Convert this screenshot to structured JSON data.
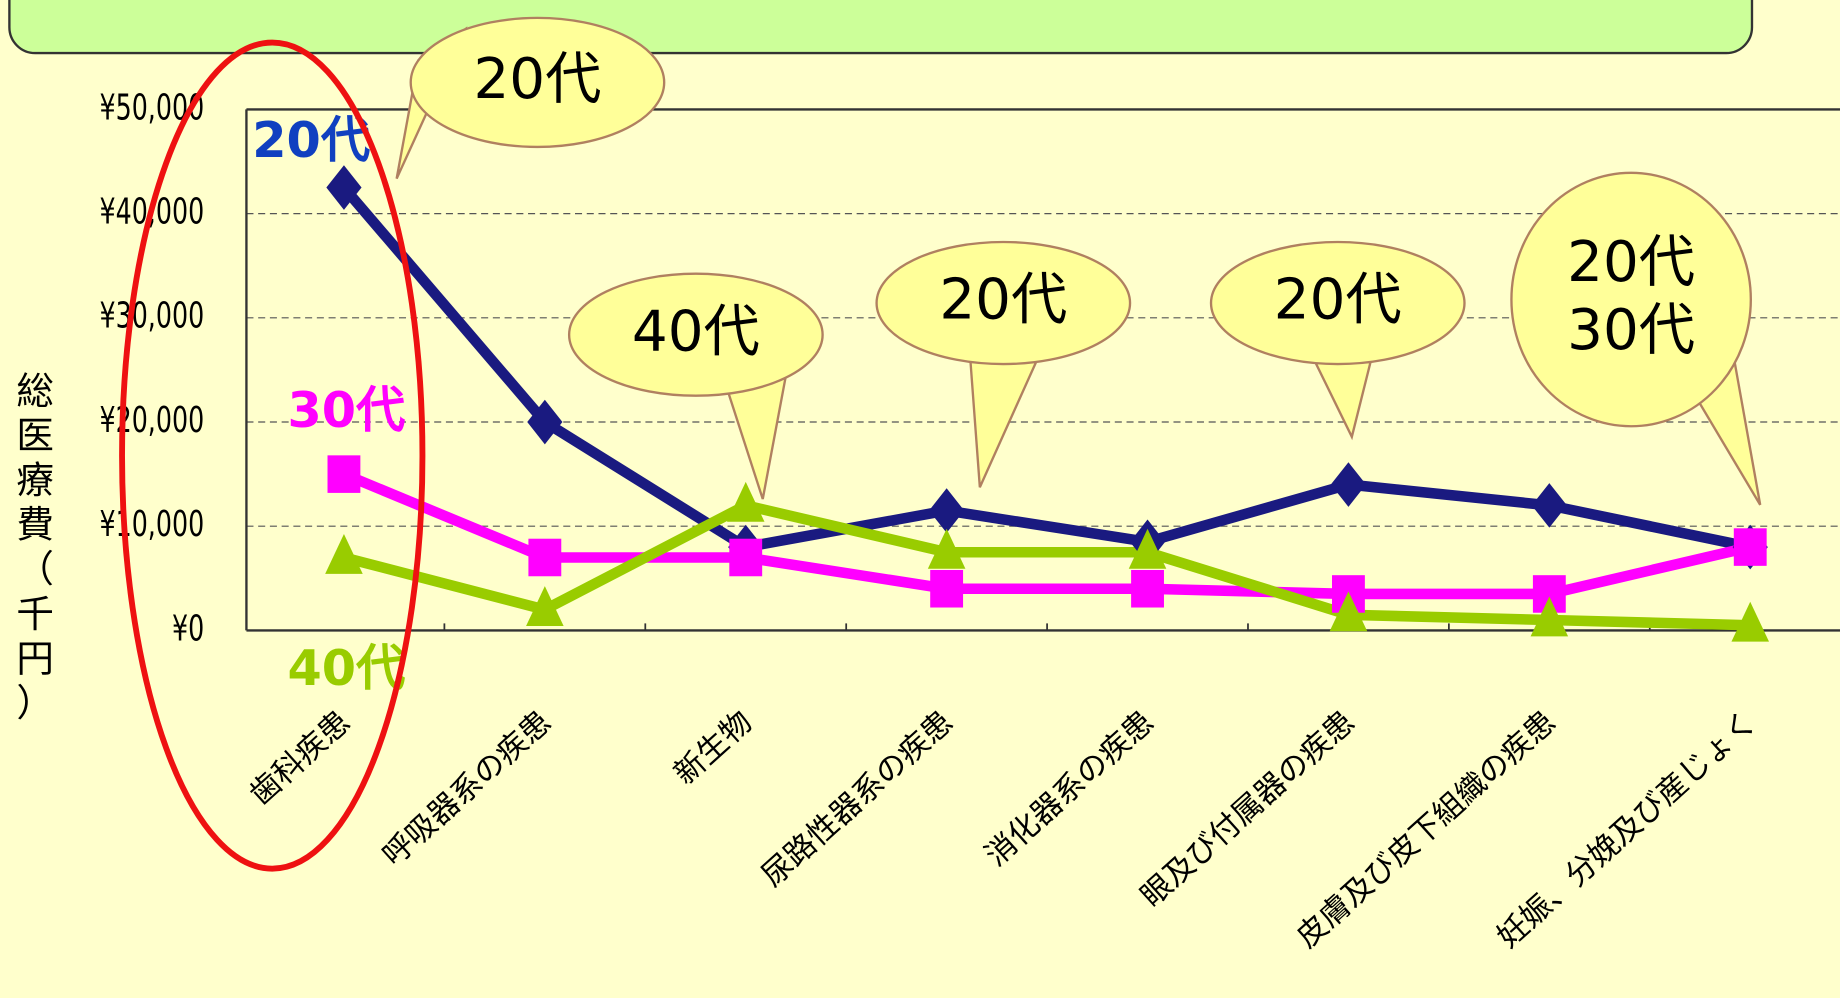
{
  "chart_data": {
    "type": "line",
    "y_label": "総医療費（千円）",
    "categories": [
      "歯科疾患",
      "呼吸器系の疾患",
      "新生物",
      "尿路性器系の疾患",
      "消化器系の疾患",
      "眼及び付属器の疾患",
      "皮膚及び皮下組織の疾患",
      "妊娠、分娩及び産じょく"
    ],
    "series": [
      {
        "name": "20代",
        "color": "#1a1a80",
        "marker": "diamond",
        "values": [
          42500,
          20000,
          8000,
          11500,
          8500,
          14000,
          12000,
          8000
        ]
      },
      {
        "name": "30代",
        "color": "#ff00ff",
        "marker": "square",
        "values": [
          15000,
          7000,
          7000,
          4000,
          4000,
          3500,
          3500,
          8000
        ]
      },
      {
        "name": "40代",
        "color": "#99cc00",
        "marker": "triangle",
        "values": [
          7000,
          2000,
          12000,
          7500,
          7500,
          1500,
          1000,
          500
        ]
      }
    ],
    "ylim": [
      0,
      50000
    ],
    "yticks": [
      {
        "value": 0,
        "label": "¥0"
      },
      {
        "value": 10000,
        "label": "¥10,000"
      },
      {
        "value": 20000,
        "label": "¥20,000"
      },
      {
        "value": 30000,
        "label": "¥30,000"
      },
      {
        "value": 40000,
        "label": "¥40,000"
      },
      {
        "value": 50000,
        "label": "¥50,000"
      }
    ],
    "grid": true,
    "callouts": [
      {
        "lines": [
          "20代"
        ]
      },
      {
        "lines": [
          "40代"
        ]
      },
      {
        "lines": [
          "20代"
        ]
      },
      {
        "lines": [
          "20代"
        ]
      },
      {
        "lines": [
          "20代",
          "30代"
        ]
      }
    ]
  }
}
